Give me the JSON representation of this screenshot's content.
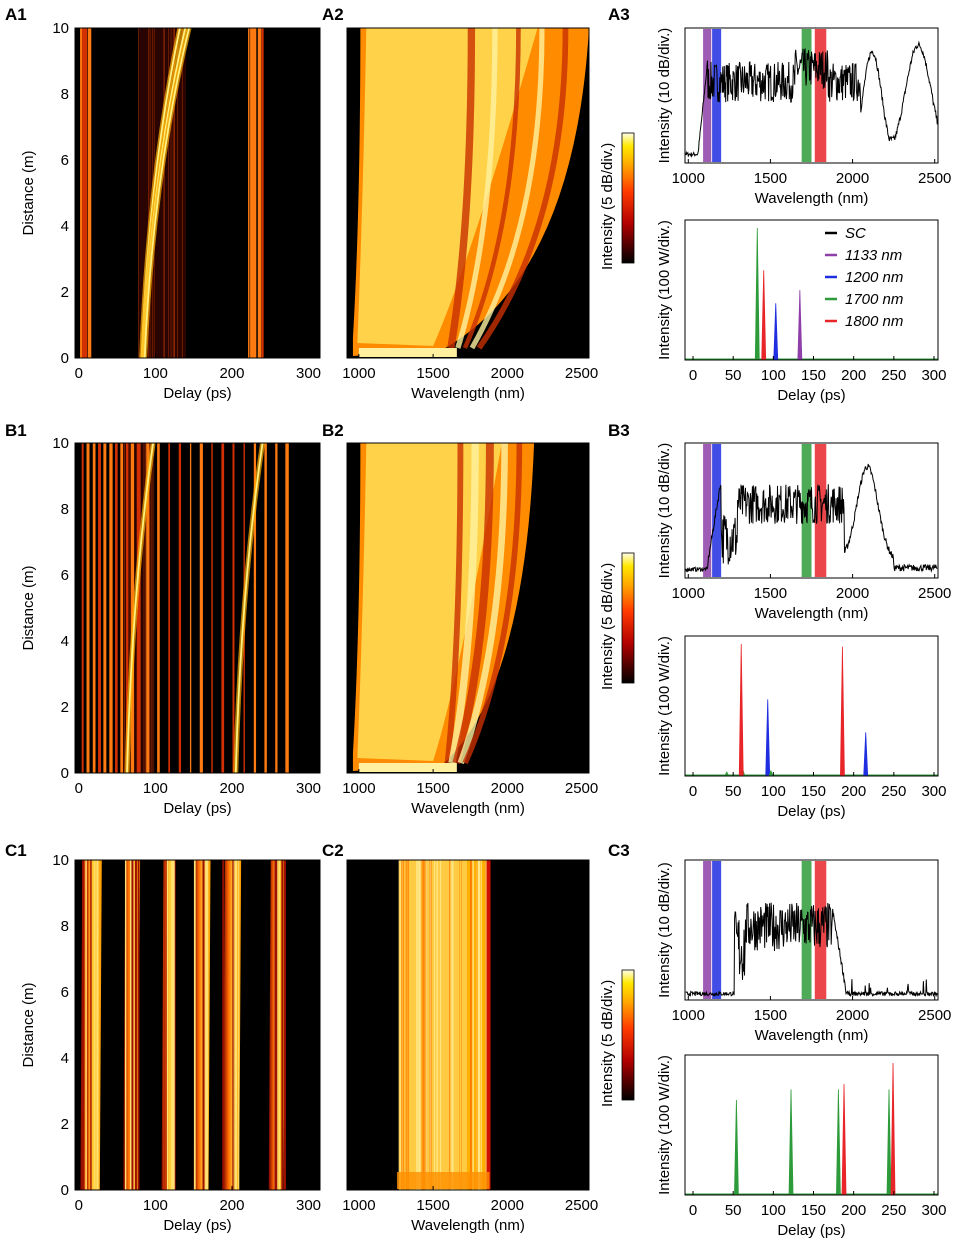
{
  "figure": {
    "panel_labels": {
      "A1": "A1",
      "A2": "A2",
      "A3": "A3",
      "B1": "B1",
      "B2": "B2",
      "B3": "B3",
      "C1": "C1",
      "C2": "C2",
      "C3": "C3"
    },
    "colorbar_label": "Intensity (5 dB/div.)"
  },
  "colors": {
    "sc": "#000000",
    "b1133": "#8e3fa8",
    "b1200": "#1f2fe0",
    "b1700": "#2e9b3a",
    "b1800": "#e8262a"
  },
  "chart_data": [
    {
      "id": "A1",
      "type": "heatmap",
      "xlabel": "Delay (ps)",
      "ylabel": "Distance (m)",
      "xlim": [
        -5,
        315
      ],
      "ylim": [
        0,
        10
      ],
      "xticks": [
        0,
        100,
        200,
        300
      ],
      "yticks": [
        0,
        2,
        4,
        6,
        8,
        10
      ],
      "straight_lines_ps": [
        3,
        6,
        9,
        14,
        222,
        226,
        230,
        236,
        240
      ],
      "soliton_tracks": [
        {
          "start_ps": 82,
          "end_ps": 132
        },
        {
          "start_ps": 84,
          "end_ps": 139
        },
        {
          "start_ps": 86,
          "end_ps": 144
        }
      ],
      "band_ps": [
        78,
        140
      ]
    },
    {
      "id": "A2",
      "type": "heatmap",
      "xlabel": "Wavelength (nm)",
      "ylabel": "",
      "xlim": [
        920,
        2550
      ],
      "ylim": [
        0,
        10
      ],
      "xticks": [
        1000,
        1500,
        2000,
        2500
      ],
      "inner_edge_nm": 1560,
      "outer_edge_nm": 2550
    },
    {
      "id": "A3-spectrum",
      "type": "line",
      "xlabel": "Wavelength (nm)",
      "ylabel": "Intensity (10 dB/div.)",
      "xlim": [
        980,
        2520
      ],
      "xticks": [
        1000,
        1500,
        2000,
        2500
      ],
      "bands_nm": [
        {
          "name": "1133 nm",
          "range": [
            1090,
            1140
          ]
        },
        {
          "name": "1200 nm",
          "range": [
            1145,
            1200
          ]
        },
        {
          "name": "1700 nm",
          "range": [
            1690,
            1750
          ]
        },
        {
          "name": "1800 nm",
          "range": [
            1770,
            1840
          ]
        }
      ],
      "spectrum_end_nm": 2500,
      "peaks_nm": [
        2120,
        2400
      ]
    },
    {
      "id": "A3-pulses",
      "type": "line",
      "xlabel": "Delay (ps)",
      "ylabel": "Intensity (100 W/div.)",
      "xlim": [
        -10,
        305
      ],
      "xticks": [
        0,
        50,
        100,
        150,
        200,
        250,
        300
      ],
      "legend": [
        "SC",
        "1133 nm",
        "1200 nm",
        "1700 nm",
        "1800 nm"
      ],
      "series": [
        {
          "name": "1133 nm",
          "peaks": [
            {
              "x": 133,
              "h": 0.53
            }
          ]
        },
        {
          "name": "1200 nm",
          "peaks": [
            {
              "x": 103,
              "h": 0.43
            }
          ]
        },
        {
          "name": "1700 nm",
          "peaks": [
            {
              "x": 80,
              "h": 1.0
            }
          ]
        },
        {
          "name": "1800 nm",
          "peaks": [
            {
              "x": 88,
              "h": 0.68
            }
          ]
        }
      ]
    },
    {
      "id": "B1",
      "type": "heatmap",
      "xlabel": "Delay (ps)",
      "ylabel": "Distance (m)",
      "xlim": [
        -5,
        315
      ],
      "ylim": [
        0,
        10
      ],
      "xticks": [
        0,
        100,
        200,
        300
      ],
      "yticks": [
        0,
        2,
        4,
        6,
        8,
        10
      ],
      "straight_lines_ps": [
        5,
        12,
        20,
        27,
        34,
        42,
        49,
        56,
        63,
        70,
        78,
        90,
        104,
        118,
        132,
        146,
        160,
        174,
        188,
        202,
        216,
        230,
        244,
        258,
        272
      ],
      "soliton_tracks": [
        {
          "start_ps": 63,
          "end_ps": 97
        },
        {
          "start_ps": 205,
          "end_ps": 240
        }
      ],
      "band_ps": [
        55,
        99
      ]
    },
    {
      "id": "B2",
      "type": "heatmap",
      "xlabel": "Wavelength (nm)",
      "ylabel": "",
      "xlim": [
        920,
        2550
      ],
      "ylim": [
        0,
        10
      ],
      "xticks": [
        1000,
        1500,
        2000,
        2500
      ],
      "inner_edge_nm": 1560,
      "outer_edge_nm": 2180
    },
    {
      "id": "B3-spectrum",
      "type": "line",
      "xlabel": "Wavelength (nm)",
      "ylabel": "Intensity (10 dB/div.)",
      "xlim": [
        980,
        2520
      ],
      "xticks": [
        1000,
        1500,
        2000,
        2500
      ],
      "bands_nm": [
        {
          "name": "1133 nm",
          "range": [
            1090,
            1140
          ]
        },
        {
          "name": "1200 nm",
          "range": [
            1145,
            1200
          ]
        },
        {
          "name": "1700 nm",
          "range": [
            1690,
            1750
          ]
        },
        {
          "name": "1800 nm",
          "range": [
            1770,
            1840
          ]
        }
      ],
      "spectrum_end_nm": 2240,
      "peaks_nm": [
        2090
      ]
    },
    {
      "id": "B3-pulses",
      "type": "line",
      "xlabel": "Delay (ps)",
      "ylabel": "Intensity (100 W/div.)",
      "xlim": [
        -10,
        305
      ],
      "xticks": [
        0,
        50,
        100,
        150,
        200,
        250,
        300
      ],
      "series": [
        {
          "name": "1200 nm",
          "peaks": [
            {
              "x": 93,
              "h": 0.58
            },
            {
              "x": 215,
              "h": 0.33
            }
          ]
        },
        {
          "name": "1700 nm",
          "peaks": [
            {
              "x": 42,
              "h": 0.03
            },
            {
              "x": 62,
              "h": 0.05
            },
            {
              "x": 97,
              "h": 0.04
            }
          ]
        },
        {
          "name": "1800 nm",
          "peaks": [
            {
              "x": 60,
              "h": 1.0
            },
            {
              "x": 186,
              "h": 0.98
            }
          ]
        }
      ]
    },
    {
      "id": "C1",
      "type": "heatmap",
      "xlabel": "Delay (ps)",
      "ylabel": "Distance (m)",
      "xlim": [
        -5,
        315
      ],
      "ylim": [
        0,
        10
      ],
      "xticks": [
        0,
        100,
        200,
        300
      ],
      "yticks": [
        0,
        2,
        4,
        6,
        8,
        10
      ],
      "streak_groups_ps": [
        {
          "start": 2,
          "end": 30
        },
        {
          "start": 58,
          "end": 80
        },
        {
          "start": 108,
          "end": 126
        },
        {
          "start": 150,
          "end": 172
        },
        {
          "start": 188,
          "end": 212
        },
        {
          "start": 248,
          "end": 270
        }
      ]
    },
    {
      "id": "C2",
      "type": "heatmap",
      "xlabel": "Wavelength (nm)",
      "ylabel": "",
      "xlim": [
        920,
        2550
      ],
      "ylim": [
        0,
        10
      ],
      "xticks": [
        1000,
        1500,
        2000,
        2500
      ],
      "edge_left_nm": 1270,
      "edge_right_nm": 1880
    },
    {
      "id": "C3-spectrum",
      "type": "line",
      "xlabel": "Wavelength (nm)",
      "ylabel": "Intensity (10 dB/div.)",
      "xlim": [
        980,
        2520
      ],
      "xticks": [
        1000,
        1500,
        2000,
        2500
      ],
      "bands_nm": [
        {
          "name": "1133 nm",
          "range": [
            1090,
            1140
          ]
        },
        {
          "name": "1200 nm",
          "range": [
            1145,
            1200
          ]
        },
        {
          "name": "1700 nm",
          "range": [
            1690,
            1750
          ]
        },
        {
          "name": "1800 nm",
          "range": [
            1770,
            1840
          ]
        }
      ],
      "spectrum_start_nm": 1290,
      "spectrum_end_nm": 1960
    },
    {
      "id": "C3-pulses",
      "type": "line",
      "xlabel": "Delay (ps)",
      "ylabel": "Intensity (100 W/div.)",
      "xlim": [
        -10,
        305
      ],
      "xticks": [
        0,
        50,
        100,
        150,
        200,
        250,
        300
      ],
      "series": [
        {
          "name": "1700 nm",
          "peaks": [
            {
              "x": 54,
              "h": 0.72
            },
            {
              "x": 122,
              "h": 0.8
            },
            {
              "x": 181,
              "h": 0.8
            },
            {
              "x": 244,
              "h": 0.8
            }
          ]
        },
        {
          "name": "1800 nm",
          "peaks": [
            {
              "x": 188,
              "h": 0.84
            },
            {
              "x": 249,
              "h": 1.0
            }
          ]
        }
      ]
    }
  ]
}
